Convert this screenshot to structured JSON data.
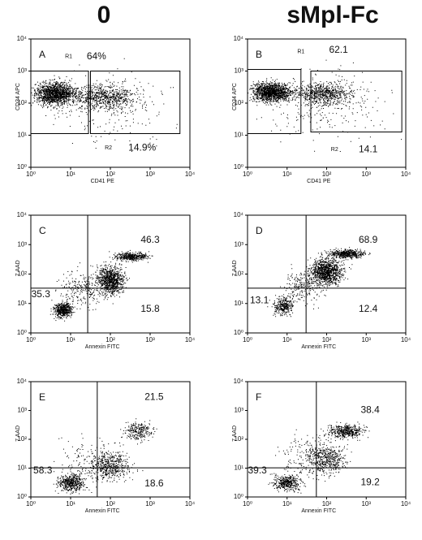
{
  "column_titles": [
    "0",
    "sMpl-Fc"
  ],
  "axis": {
    "xticks": [
      {
        "value": 0,
        "label": "10⁰"
      },
      {
        "value": 1,
        "label": "10¹"
      },
      {
        "value": 2,
        "label": "10²"
      },
      {
        "value": 3,
        "label": "10³"
      },
      {
        "value": 4,
        "label": "10⁴"
      }
    ],
    "yticks": [
      {
        "value": 0,
        "label": "10⁰"
      },
      {
        "value": 1,
        "label": "10¹"
      },
      {
        "value": 2,
        "label": "10²"
      },
      {
        "value": 3,
        "label": "10³"
      },
      {
        "value": 4,
        "label": "10⁴"
      }
    ]
  },
  "panels": [
    {
      "letter": "A",
      "x_label": "CD41 PE",
      "y_label": "CD34 APC",
      "gate_1": "R1",
      "gate_1_value": "64%",
      "gate_2": "R2",
      "gate_2_value": "14.9%"
    },
    {
      "letter": "B",
      "x_label": "CD41 PE",
      "y_label": "CD34 APC",
      "gate_1": "R1",
      "gate_1_value": "62.1",
      "gate_2": "R2",
      "gate_2_value": "14.1"
    },
    {
      "letter": "C",
      "x_label": "Annexin FITC",
      "y_label": "7 AAD",
      "upper_right": "46.3",
      "lower_left": "35.3",
      "lower_right": "15.8"
    },
    {
      "letter": "D",
      "x_label": "Annexin FITC",
      "y_label": "7 AAD",
      "upper_right": "68.9",
      "lower_left": "13.1",
      "lower_right": "12.4"
    },
    {
      "letter": "E",
      "x_label": "Annexin FITC",
      "y_label": "7 AAD",
      "upper_right": "21.5",
      "lower_left": "58.3",
      "lower_right": "18.6"
    },
    {
      "letter": "F",
      "x_label": "Annexin FITC",
      "y_label": "7 AAD",
      "upper_right": "38.4",
      "lower_left": "39.3",
      "lower_right": "19.2"
    }
  ]
}
